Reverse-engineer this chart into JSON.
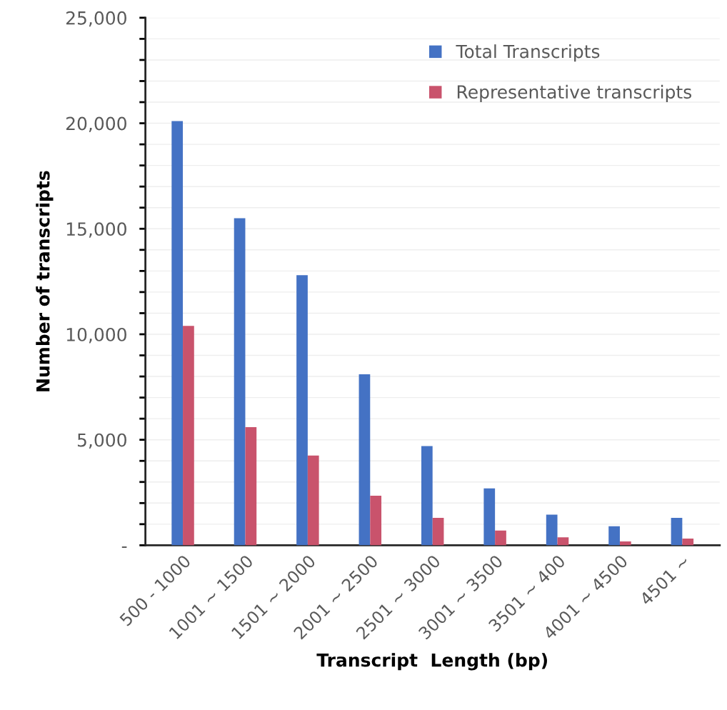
{
  "chart_data": {
    "type": "bar",
    "xlabel": "Transcript  Length (bp)",
    "ylabel": "Number of transcripts",
    "categories": [
      "500 - 1000",
      "1001 ~ 1500",
      "1501 ~ 2000",
      "2001 ~ 2500",
      "2501 ~ 3000",
      "3001 ~ 3500",
      "3501 ~ 400",
      "4001 ~ 4500",
      "4501 ~"
    ],
    "series": [
      {
        "name": "Total Transcripts",
        "color": "#4472c4",
        "values": [
          20100,
          15500,
          12800,
          8100,
          4700,
          2700,
          1450,
          900,
          1300
        ]
      },
      {
        "name": "Representative transcripts",
        "color": "#c9536c",
        "values": [
          10400,
          5600,
          4250,
          2350,
          1300,
          700,
          380,
          180,
          320
        ]
      }
    ],
    "ylim": [
      0,
      25000
    ],
    "yticks": [
      {
        "value": 0,
        "label": "-"
      },
      {
        "value": 1000,
        "label": null
      },
      {
        "value": 2000,
        "label": null
      },
      {
        "value": 3000,
        "label": null
      },
      {
        "value": 4000,
        "label": null
      },
      {
        "value": 5000,
        "label": "5,000"
      },
      {
        "value": 6000,
        "label": null
      },
      {
        "value": 7000,
        "label": null
      },
      {
        "value": 8000,
        "label": null
      },
      {
        "value": 9000,
        "label": null
      },
      {
        "value": 10000,
        "label": "10,000"
      },
      {
        "value": 11000,
        "label": null
      },
      {
        "value": 12000,
        "label": null
      },
      {
        "value": 13000,
        "label": null
      },
      {
        "value": 14000,
        "label": null
      },
      {
        "value": 15000,
        "label": "15,000"
      },
      {
        "value": 16000,
        "label": null
      },
      {
        "value": 17000,
        "label": null
      },
      {
        "value": 18000,
        "label": null
      },
      {
        "value": 19000,
        "label": null
      },
      {
        "value": 20000,
        "label": "20,000"
      },
      {
        "value": 21000,
        "label": null
      },
      {
        "value": 22000,
        "label": null
      },
      {
        "value": 23000,
        "label": null
      },
      {
        "value": 24000,
        "label": null
      },
      {
        "value": 25000,
        "label": "25,000"
      }
    ],
    "grid": "y",
    "legend": "top right"
  }
}
